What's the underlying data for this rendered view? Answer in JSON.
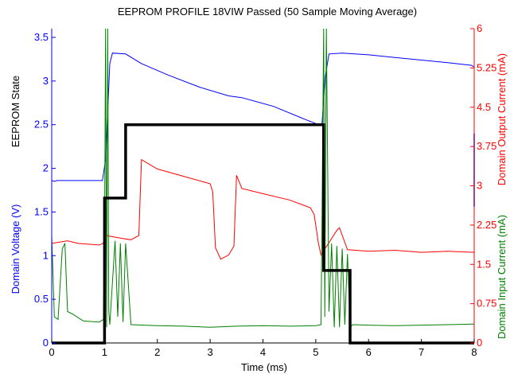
{
  "chart_data": {
    "type": "line",
    "title": "EEPROM PROFILE 18VIW Passed (50 Sample Moving Average)",
    "xlabel": "Time (ms)",
    "xlim": [
      0,
      8
    ],
    "x_ticks": [
      "0",
      "1",
      "2",
      "3",
      "4",
      "5",
      "6",
      "7",
      "8"
    ],
    "ylabel_left_top": "EEPROM State",
    "ylabel_left_bottom": "Domain Voltage (V)",
    "ylim_left": [
      0,
      3.6
    ],
    "left_ticks": [
      "0",
      "0.5",
      "1",
      "1.5",
      "2",
      "2.5",
      "3",
      "3.5"
    ],
    "ylabel_right_top": "Domain Output Current (mA)",
    "ylabel_right_bottom": "Domain Input Current (mA)",
    "ylim_right": [
      0,
      6
    ],
    "right_ticks": [
      "0",
      "0.75",
      "1.5",
      "2.25",
      "3",
      "3.75",
      "4.5",
      "5.25",
      "6"
    ],
    "colors": {
      "voltage": "#0000ff",
      "output_current": "#ff0000",
      "input_current": "#008000",
      "state": "#000000",
      "right_axis": "#ff0000",
      "right_axis_mid": "#800080",
      "left_axis": "#0000ff"
    },
    "series": [
      {
        "key": "voltage",
        "axis": "left",
        "width": 1,
        "x": [
          0,
          0.05,
          0.1,
          0.5,
          0.96,
          1.02,
          1.1,
          1.15,
          1.4,
          1.7,
          2.2,
          2.8,
          3.35,
          3.6,
          4.2,
          4.8,
          5.1,
          5.12,
          5.18,
          5.25,
          5.5,
          6,
          6.5,
          7,
          7.5,
          7.95,
          8
        ],
        "y": [
          1.86,
          1.85,
          1.86,
          1.86,
          1.86,
          2.1,
          3.2,
          3.32,
          3.31,
          3.2,
          3.07,
          2.93,
          2.83,
          2.81,
          2.71,
          2.56,
          2.49,
          2.52,
          3.05,
          3.31,
          3.32,
          3.3,
          3.27,
          3.24,
          3.21,
          3.18,
          3.16
        ]
      },
      {
        "key": "output_current",
        "axis": "right",
        "width": 1,
        "x": [
          0,
          0.3,
          0.5,
          0.9,
          0.97,
          1.03,
          1.3,
          1.5,
          1.65,
          1.7,
          2.0,
          2.5,
          3.0,
          3.05,
          3.1,
          3.2,
          3.35,
          3.45,
          3.5,
          3.6,
          4.0,
          4.5,
          4.9,
          4.97,
          5.05,
          5.1,
          5.4,
          5.45,
          5.6,
          6.0,
          6.5,
          7.0,
          7.5,
          8.0
        ],
        "y": [
          1.9,
          1.95,
          1.9,
          1.87,
          1.9,
          2.05,
          2.0,
          1.97,
          2.05,
          3.5,
          3.32,
          3.18,
          3.04,
          2.88,
          1.82,
          1.6,
          1.68,
          1.85,
          3.2,
          2.95,
          2.85,
          2.73,
          2.58,
          2.45,
          1.9,
          1.68,
          2.15,
          2.2,
          1.78,
          1.75,
          1.77,
          1.73,
          1.75,
          1.73
        ]
      },
      {
        "key": "input_current",
        "axis": "right",
        "width": 1,
        "x": [
          0,
          0.05,
          0.12,
          0.2,
          0.25,
          0.3,
          0.4,
          0.6,
          0.9,
          0.98,
          1.0,
          1.02,
          1.04,
          1.06,
          1.08,
          1.1,
          1.2,
          1.25,
          1.3,
          1.35,
          1.4,
          1.5,
          2.0,
          2.5,
          3.0,
          3.5,
          4.0,
          4.5,
          5.0,
          5.1,
          5.15,
          5.17,
          5.2,
          5.25,
          5.3,
          5.35,
          5.4,
          5.45,
          5.5,
          5.55,
          5.6,
          5.65,
          5.7,
          6.0,
          6.5,
          7.0,
          7.5,
          8.0
        ],
        "y": [
          2.05,
          0.5,
          0.45,
          1.8,
          1.9,
          0.6,
          0.55,
          0.42,
          0.4,
          0.45,
          2.0,
          6.0,
          0.3,
          6.0,
          0.6,
          0.35,
          1.95,
          0.5,
          1.9,
          0.4,
          1.9,
          0.35,
          0.33,
          0.32,
          0.3,
          0.32,
          0.33,
          0.32,
          0.33,
          0.35,
          6.0,
          0.5,
          6.0,
          0.6,
          1.9,
          0.3,
          1.85,
          0.3,
          1.8,
          0.35,
          1.7,
          0.3,
          0.35,
          0.34,
          0.33,
          0.34,
          0.35,
          0.36
        ]
      },
      {
        "key": "state",
        "axis": "left",
        "width": 3.5,
        "x": [
          0,
          1.0,
          1.0,
          1.4,
          1.4,
          5.15,
          5.15,
          5.65,
          5.65,
          8.0
        ],
        "y": [
          0,
          0,
          1.66,
          1.66,
          2.5,
          2.5,
          0.83,
          0.83,
          0,
          0
        ]
      }
    ]
  }
}
